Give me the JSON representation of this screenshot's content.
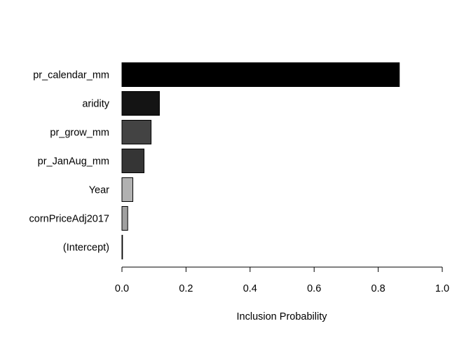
{
  "chart_data": {
    "type": "bar",
    "orientation": "horizontal",
    "categories": [
      "pr_calendar_mm",
      "aridity",
      "pr_grow_mm",
      "pr_JanAug_mm",
      "Year",
      "cornPriceAdj2017",
      "(Intercept)"
    ],
    "values": [
      0.866,
      0.117,
      0.091,
      0.069,
      0.034,
      0.018,
      0.001
    ],
    "bar_colors": [
      "#000000",
      "#141414",
      "#434343",
      "#353535",
      "#b1b1b1",
      "#a0a0a0",
      "#ffffff"
    ],
    "xlabel": "Inclusion Probability",
    "xlim": [
      0,
      1
    ],
    "xticks": [
      "0.0",
      "0.2",
      "0.4",
      "0.6",
      "0.8",
      "1.0"
    ],
    "grid": false
  }
}
